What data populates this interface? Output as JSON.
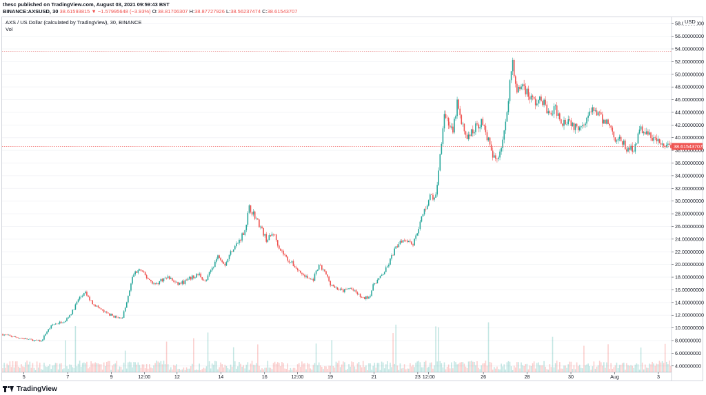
{
  "header": {
    "published": "thesc published on TradingView.com, August 03, 2021 09:59:43 BST",
    "symbol": "BINANCE:AXSUSD, 30",
    "last": "38.61593815",
    "change": "▼ −1.57995648 (−3.93%)",
    "o_label": "O:",
    "o_value": "38.81706307",
    "h_label": "H:",
    "h_value": "38.87727926",
    "l_label": "L:",
    "l_value": "38.56237474",
    "c_label": "C:",
    "c_value": "38.61543707"
  },
  "legend": {
    "title": "AXS / US Dollar (calculated by TradingView), 30, BINANCE",
    "vol": "Vol"
  },
  "currency": "USD",
  "footer": {
    "brand": "TradingView"
  },
  "colors": {
    "up": "#26a69a",
    "down": "#ef5350",
    "price_line": "#ef5350",
    "grid": "#f0f3fa",
    "axis_text": "#131722"
  },
  "chart_data": {
    "type": "candlestick",
    "title": "AXS / US Dollar (calculated by TradingView), 30, BINANCE",
    "ylim": [
      3.0,
      59.0
    ],
    "y_ticks": [
      "4.00000000",
      "6.00000000",
      "8.00000000",
      "10.00000000",
      "12.00000000",
      "14.00000000",
      "16.00000000",
      "18.00000000",
      "20.00000000",
      "22.00000000",
      "24.00000000",
      "26.00000000",
      "28.00000000",
      "30.00000000",
      "32.00000000",
      "34.00000000",
      "36.00000000",
      "38.00000000",
      "40.00000000",
      "42.00000000",
      "44.00000000",
      "46.00000000",
      "48.00000000",
      "50.00000000",
      "52.00000000",
      "54.00000000",
      "56.00000000",
      "58.00000000"
    ],
    "x_tick_labels": [
      "5",
      "7",
      "9",
      "12:00",
      "12",
      "14",
      "16",
      "12:00",
      "19",
      "21",
      "23",
      "12:00",
      "26",
      "28",
      "30",
      "Aug",
      "3"
    ],
    "x_tick_days": [
      5,
      7,
      9,
      10.5,
      12,
      14,
      16,
      17.5,
      19,
      21,
      23,
      23.5,
      26,
      28,
      30,
      32,
      34
    ],
    "last_price": 38.61543707,
    "last_price_label": "38.61543707",
    "high_line": 53.6,
    "price_path": [
      [
        4.0,
        9.0
      ],
      [
        4.5,
        8.6
      ],
      [
        5.0,
        8.3
      ],
      [
        5.5,
        8.0
      ],
      [
        5.8,
        7.9
      ],
      [
        6.0,
        9.2
      ],
      [
        6.3,
        10.5
      ],
      [
        6.6,
        10.8
      ],
      [
        6.9,
        11.2
      ],
      [
        7.2,
        12.5
      ],
      [
        7.5,
        14.6
      ],
      [
        7.8,
        15.5
      ],
      [
        8.1,
        14.0
      ],
      [
        8.4,
        13.2
      ],
      [
        8.7,
        12.4
      ],
      [
        9.0,
        12.0
      ],
      [
        9.3,
        11.5
      ],
      [
        9.5,
        11.7
      ],
      [
        9.7,
        14.0
      ],
      [
        10.0,
        18.5
      ],
      [
        10.3,
        19.2
      ],
      [
        10.6,
        18.0
      ],
      [
        11.0,
        16.8
      ],
      [
        11.3,
        17.6
      ],
      [
        11.6,
        18.0
      ],
      [
        12.0,
        16.9
      ],
      [
        12.3,
        17.2
      ],
      [
        12.6,
        17.8
      ],
      [
        13.0,
        18.5
      ],
      [
        13.3,
        17.2
      ],
      [
        13.6,
        19.5
      ],
      [
        13.9,
        21.5
      ],
      [
        14.2,
        20.0
      ],
      [
        14.5,
        22.3
      ],
      [
        14.8,
        23.5
      ],
      [
        15.1,
        25.5
      ],
      [
        15.3,
        29.0
      ],
      [
        15.5,
        28.0
      ],
      [
        15.8,
        26.0
      ],
      [
        16.1,
        23.8
      ],
      [
        16.4,
        25.0
      ],
      [
        16.7,
        22.5
      ],
      [
        17.0,
        21.0
      ],
      [
        17.3,
        20.0
      ],
      [
        17.6,
        18.8
      ],
      [
        17.9,
        18.0
      ],
      [
        18.2,
        17.5
      ],
      [
        18.5,
        19.8
      ],
      [
        18.8,
        18.5
      ],
      [
        19.0,
        17.0
      ],
      [
        19.3,
        16.2
      ],
      [
        19.6,
        15.8
      ],
      [
        19.9,
        16.3
      ],
      [
        20.2,
        15.5
      ],
      [
        20.5,
        14.6
      ],
      [
        20.8,
        15.0
      ],
      [
        21.0,
        17.0
      ],
      [
        21.3,
        18.0
      ],
      [
        21.6,
        19.5
      ],
      [
        21.9,
        22.0
      ],
      [
        22.2,
        23.8
      ],
      [
        22.5,
        24.0
      ],
      [
        22.8,
        23.2
      ],
      [
        23.0,
        25.5
      ],
      [
        23.3,
        28.5
      ],
      [
        23.6,
        31.0
      ],
      [
        23.8,
        30.0
      ],
      [
        24.0,
        36.5
      ],
      [
        24.2,
        44.0
      ],
      [
        24.4,
        42.5
      ],
      [
        24.6,
        40.5
      ],
      [
        24.8,
        45.5
      ],
      [
        25.0,
        42.0
      ],
      [
        25.3,
        40.0
      ],
      [
        25.6,
        41.5
      ],
      [
        25.9,
        42.5
      ],
      [
        26.2,
        40.0
      ],
      [
        26.4,
        37.0
      ],
      [
        26.6,
        36.5
      ],
      [
        26.8,
        38.5
      ],
      [
        27.0,
        41.5
      ],
      [
        27.2,
        48.5
      ],
      [
        27.35,
        52.5
      ],
      [
        27.5,
        47.0
      ],
      [
        27.8,
        48.5
      ],
      [
        28.1,
        46.5
      ],
      [
        28.4,
        45.5
      ],
      [
        28.7,
        46.0
      ],
      [
        29.0,
        43.5
      ],
      [
        29.3,
        44.5
      ],
      [
        29.6,
        42.5
      ],
      [
        29.9,
        43.0
      ],
      [
        30.2,
        41.5
      ],
      [
        30.5,
        42.3
      ],
      [
        30.8,
        43.5
      ],
      [
        31.1,
        44.5
      ],
      [
        31.4,
        42.8
      ],
      [
        31.7,
        42.5
      ],
      [
        32.0,
        40.0
      ],
      [
        32.3,
        39.5
      ],
      [
        32.6,
        38.0
      ],
      [
        32.9,
        38.5
      ],
      [
        33.2,
        41.5
      ],
      [
        33.5,
        40.5
      ],
      [
        33.8,
        39.8
      ],
      [
        34.1,
        39.0
      ],
      [
        34.3,
        38.6
      ]
    ]
  }
}
